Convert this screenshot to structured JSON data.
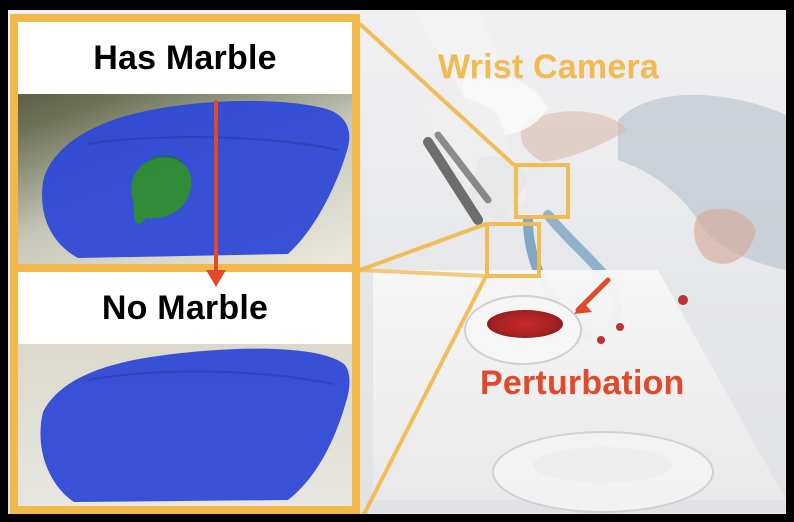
{
  "panel_labels": {
    "has_marble": "Has Marble",
    "no_marble": "No Marble"
  },
  "overlay_labels": {
    "wrist_camera": "Wrist Camera",
    "perturbation": "Perturbation"
  },
  "colors": {
    "accent_gold": "#f2b84b",
    "arrow_red": "#e04a2a",
    "segmentation_blue": "#2f49d6",
    "marble_green": "#2f8f2d"
  }
}
